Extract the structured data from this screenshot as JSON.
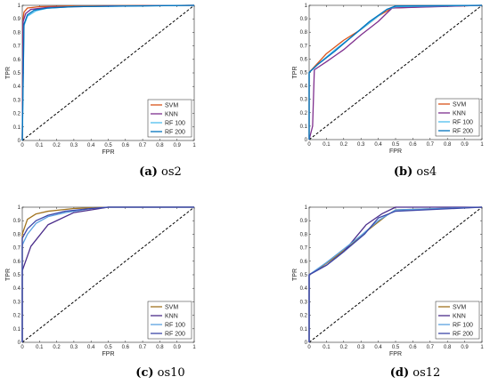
{
  "colors": {
    "SVM": "#d95319",
    "KNN": "#7e2f8e",
    "RF 100": "#4dbeee",
    "RF 200": "#0072bd",
    "SVM_c": "#a2741f",
    "KNN_c": "#4a2c8a",
    "RF100_c": "#5aa0e0",
    "RF200_c": "#3b46a8",
    "diag": "#000000"
  },
  "chart_data": [
    {
      "type": "line",
      "caption_label": "(a)",
      "caption_text": " os2",
      "xlabel": "FPR",
      "ylabel": "TPR",
      "xlim": [
        0,
        1
      ],
      "ylim": [
        0,
        1
      ],
      "xticks": [
        "0",
        "0.1",
        "0.2",
        "0.3",
        "0.4",
        "0.5",
        "0.6",
        "0.7",
        "0.8",
        "0.9",
        "1"
      ],
      "yticks": [
        "0",
        "0.1",
        "0.2",
        "0.3",
        "0.4",
        "0.5",
        "0.6",
        "0.7",
        "0.8",
        "0.9",
        "1"
      ],
      "legend_position": "bottom-right",
      "series": [
        {
          "name": "SVM",
          "color_key": "SVM",
          "points": [
            [
              0,
              0
            ],
            [
              0.005,
              0.9
            ],
            [
              0.01,
              0.95
            ],
            [
              0.03,
              0.98
            ],
            [
              0.1,
              0.99
            ],
            [
              0.3,
              0.995
            ],
            [
              1,
              1
            ]
          ]
        },
        {
          "name": "KNN",
          "color_key": "KNN",
          "points": [
            [
              0,
              0
            ],
            [
              0.005,
              0.88
            ],
            [
              0.02,
              0.94
            ],
            [
              0.05,
              0.97
            ],
            [
              0.15,
              0.985
            ],
            [
              0.5,
              0.995
            ],
            [
              1,
              1
            ]
          ]
        },
        {
          "name": "RF 100",
          "color_key": "RF 100",
          "points": [
            [
              0,
              0
            ],
            [
              0.01,
              0.85
            ],
            [
              0.03,
              0.92
            ],
            [
              0.08,
              0.96
            ],
            [
              0.15,
              0.98
            ],
            [
              0.3,
              0.99
            ],
            [
              1,
              1
            ]
          ]
        },
        {
          "name": "RF 200",
          "color_key": "RF 200",
          "points": [
            [
              0,
              0
            ],
            [
              0.01,
              0.86
            ],
            [
              0.03,
              0.93
            ],
            [
              0.07,
              0.965
            ],
            [
              0.15,
              0.98
            ],
            [
              0.3,
              0.99
            ],
            [
              1,
              1
            ]
          ]
        }
      ],
      "diagonal": [
        [
          0,
          0
        ],
        [
          1,
          1
        ]
      ]
    },
    {
      "type": "line",
      "caption_label": "(b)",
      "caption_text": " os4",
      "xlabel": "FPR",
      "ylabel": "TPR",
      "xlim": [
        0,
        1
      ],
      "ylim": [
        0,
        1
      ],
      "xticks": [
        "0",
        "0.1",
        "0.2",
        "0.3",
        "0.4",
        "0.5",
        "0.6",
        "0.7",
        "0.8",
        "0.9",
        "1"
      ],
      "yticks": [
        "0",
        "0.1",
        "0.2",
        "0.3",
        "0.4",
        "0.5",
        "0.6",
        "0.7",
        "0.8",
        "0.9",
        "1"
      ],
      "legend_position": "bottom-right",
      "series": [
        {
          "name": "SVM",
          "color_key": "SVM",
          "points": [
            [
              0,
              0
            ],
            [
              0,
              0.5
            ],
            [
              0.05,
              0.57
            ],
            [
              0.1,
              0.64
            ],
            [
              0.2,
              0.74
            ],
            [
              0.3,
              0.82
            ],
            [
              0.4,
              0.92
            ],
            [
              0.48,
              0.98
            ],
            [
              0.7,
              0.99
            ],
            [
              1,
              1
            ]
          ]
        },
        {
          "name": "KNN",
          "color_key": "KNN",
          "points": [
            [
              0,
              0
            ],
            [
              0.02,
              0.1
            ],
            [
              0.03,
              0.52
            ],
            [
              0.1,
              0.58
            ],
            [
              0.2,
              0.67
            ],
            [
              0.3,
              0.78
            ],
            [
              0.4,
              0.88
            ],
            [
              0.48,
              0.98
            ],
            [
              1,
              1
            ]
          ]
        },
        {
          "name": "RF 100",
          "color_key": "RF 100",
          "points": [
            [
              0,
              0
            ],
            [
              0,
              0.5
            ],
            [
              0.05,
              0.56
            ],
            [
              0.15,
              0.67
            ],
            [
              0.25,
              0.77
            ],
            [
              0.35,
              0.87
            ],
            [
              0.45,
              0.97
            ],
            [
              0.5,
              0.99
            ],
            [
              1,
              1
            ]
          ]
        },
        {
          "name": "RF 200",
          "color_key": "RF 200",
          "points": [
            [
              0,
              0
            ],
            [
              0,
              0.5
            ],
            [
              0.05,
              0.56
            ],
            [
              0.15,
              0.66
            ],
            [
              0.25,
              0.77
            ],
            [
              0.35,
              0.88
            ],
            [
              0.45,
              0.97
            ],
            [
              0.5,
              0.995
            ],
            [
              1,
              1
            ]
          ]
        }
      ],
      "diagonal": [
        [
          0,
          0
        ],
        [
          1,
          1
        ]
      ]
    },
    {
      "type": "line",
      "caption_label": "(c)",
      "caption_text": " os10",
      "xlabel": "FPR",
      "ylabel": "TPR",
      "xlim": [
        0,
        1
      ],
      "ylim": [
        0,
        1
      ],
      "xticks": [
        "0",
        "0.1",
        "0.2",
        "0.3",
        "0.4",
        "0.5",
        "0.6",
        "0.7",
        "0.8",
        "0.9",
        "1"
      ],
      "yticks": [
        "0",
        "0.1",
        "0.2",
        "0.3",
        "0.4",
        "0.5",
        "0.6",
        "0.7",
        "0.8",
        "0.9",
        "1"
      ],
      "legend_position": "bottom-right",
      "series": [
        {
          "name": "SVM",
          "color_key": "SVM_c",
          "points": [
            [
              0,
              0
            ],
            [
              0,
              0.8
            ],
            [
              0.03,
              0.91
            ],
            [
              0.08,
              0.95
            ],
            [
              0.15,
              0.97
            ],
            [
              0.3,
              0.99
            ],
            [
              0.5,
              1
            ],
            [
              1,
              1
            ]
          ]
        },
        {
          "name": "KNN",
          "color_key": "KNN_c",
          "points": [
            [
              0,
              0
            ],
            [
              0,
              0.53
            ],
            [
              0.05,
              0.71
            ],
            [
              0.15,
              0.87
            ],
            [
              0.3,
              0.96
            ],
            [
              0.5,
              1
            ],
            [
              1,
              1
            ]
          ]
        },
        {
          "name": "RF 100",
          "color_key": "RF100_c",
          "points": [
            [
              0,
              0
            ],
            [
              0,
              0.72
            ],
            [
              0.03,
              0.8
            ],
            [
              0.08,
              0.88
            ],
            [
              0.15,
              0.93
            ],
            [
              0.25,
              0.96
            ],
            [
              0.4,
              0.99
            ],
            [
              0.5,
              1
            ],
            [
              1,
              1
            ]
          ]
        },
        {
          "name": "RF 200",
          "color_key": "RF200_c",
          "points": [
            [
              0,
              0
            ],
            [
              0,
              0.77
            ],
            [
              0.03,
              0.84
            ],
            [
              0.08,
              0.9
            ],
            [
              0.15,
              0.94
            ],
            [
              0.25,
              0.97
            ],
            [
              0.4,
              0.99
            ],
            [
              0.5,
              1
            ],
            [
              1,
              1
            ]
          ]
        }
      ],
      "diagonal": [
        [
          0,
          0
        ],
        [
          1,
          1
        ]
      ]
    },
    {
      "type": "line",
      "caption_label": "(d)",
      "caption_text": " os12",
      "xlabel": "FPR",
      "ylabel": "TPR",
      "xlim": [
        0,
        1
      ],
      "ylim": [
        0,
        1
      ],
      "xticks": [
        "0",
        "0.1",
        "0.2",
        "0.3",
        "0.4",
        "0.5",
        "0.6",
        "0.7",
        "0.8",
        "0.9",
        "1"
      ],
      "yticks": [
        "0",
        "0.1",
        "0.2",
        "0.3",
        "0.4",
        "0.5",
        "0.6",
        "0.7",
        "0.8",
        "0.9",
        "1"
      ],
      "legend_position": "bottom-right",
      "series": [
        {
          "name": "SVM",
          "color_key": "SVM_c",
          "points": [
            [
              0,
              0
            ],
            [
              0,
              0.5
            ],
            [
              0.05,
              0.54
            ],
            [
              0.15,
              0.63
            ],
            [
              0.25,
              0.73
            ],
            [
              0.35,
              0.84
            ],
            [
              0.45,
              0.94
            ],
            [
              0.5,
              0.98
            ],
            [
              1,
              1
            ]
          ]
        },
        {
          "name": "KNN",
          "color_key": "KNN_c",
          "points": [
            [
              0,
              0
            ],
            [
              0,
              0.5
            ],
            [
              0.1,
              0.57
            ],
            [
              0.2,
              0.67
            ],
            [
              0.33,
              0.87
            ],
            [
              0.42,
              0.95
            ],
            [
              0.5,
              1
            ],
            [
              1,
              1
            ]
          ]
        },
        {
          "name": "RF 100",
          "color_key": "RF100_c",
          "points": [
            [
              0,
              0
            ],
            [
              0,
              0.5
            ],
            [
              0.1,
              0.59
            ],
            [
              0.2,
              0.69
            ],
            [
              0.3,
              0.79
            ],
            [
              0.4,
              0.9
            ],
            [
              0.5,
              0.98
            ],
            [
              1,
              1
            ]
          ]
        },
        {
          "name": "RF 200",
          "color_key": "RF200_c",
          "points": [
            [
              0,
              0
            ],
            [
              0,
              0.5
            ],
            [
              0.1,
              0.57
            ],
            [
              0.2,
              0.67
            ],
            [
              0.32,
              0.8
            ],
            [
              0.4,
              0.92
            ],
            [
              0.5,
              0.97
            ],
            [
              1,
              1
            ]
          ]
        }
      ],
      "diagonal": [
        [
          0,
          0
        ],
        [
          1,
          1
        ]
      ]
    }
  ]
}
